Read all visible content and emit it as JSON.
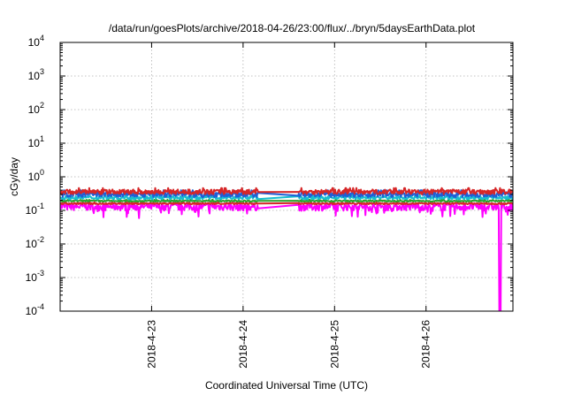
{
  "chart_data": {
    "type": "line",
    "title": "/data/run/goesPlots/archive/2018-04-26/23:00/flux/../bryn/5daysEarthData.plot",
    "xlabel": "Coordinated Universal Time (UTC)",
    "ylabel": "cGy/day",
    "y_scale": "log",
    "ylim": [
      0.0001,
      10000
    ],
    "xlim": [
      0,
      4.95
    ],
    "x_unit": "days since 2018-04-22 00:00 UTC",
    "grid": true,
    "legend": "none",
    "y_ticks": [
      {
        "base": "10",
        "exp": "-4",
        "value": 0.0001
      },
      {
        "base": "10",
        "exp": "-3",
        "value": 0.001
      },
      {
        "base": "10",
        "exp": "-2",
        "value": 0.01
      },
      {
        "base": "10",
        "exp": "-1",
        "value": 0.1
      },
      {
        "base": "10",
        "exp": "0",
        "value": 1
      },
      {
        "base": "10",
        "exp": "1",
        "value": 10
      },
      {
        "base": "10",
        "exp": "2",
        "value": 100
      },
      {
        "base": "10",
        "exp": "3",
        "value": 1000
      },
      {
        "base": "10",
        "exp": "4",
        "value": 10000
      }
    ],
    "x_ticks": [
      {
        "label": "2018-4-23",
        "x": 1
      },
      {
        "label": "2018-4-24",
        "x": 2
      },
      {
        "label": "2018-4-25",
        "x": 3
      },
      {
        "label": "2018-4-26",
        "x": 4
      }
    ],
    "gap": [
      2.17,
      2.6
    ],
    "series": [
      {
        "color": "#ff00ff",
        "base": 0.13,
        "noise": 0.25,
        "dips": true,
        "drop": {
          "x": 4.8,
          "to": 0.0001
        }
      },
      {
        "color": "#d62728",
        "base": 0.16,
        "noise": 0.05
      },
      {
        "color": "#2ca02c",
        "base": 0.19,
        "noise": 0.05
      },
      {
        "color": "#17becf",
        "base": 0.24,
        "noise": 0.12
      },
      {
        "color": "#1f5fd6",
        "base": 0.3,
        "noise": 0.18
      },
      {
        "color": "#d62728",
        "base": 0.36,
        "noise": 0.16
      }
    ]
  }
}
